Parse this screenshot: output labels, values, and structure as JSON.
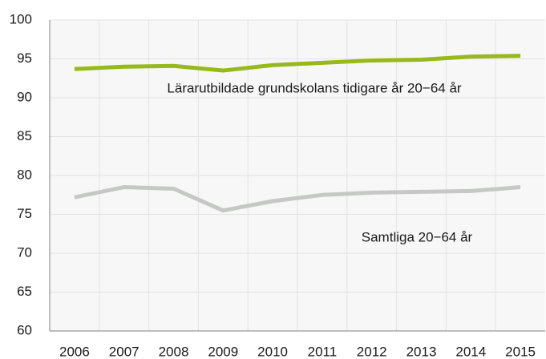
{
  "chart_data": {
    "type": "line",
    "categories": [
      "2006",
      "2007",
      "2008",
      "2009",
      "2010",
      "2011",
      "2012",
      "2013",
      "2014",
      "2015"
    ],
    "series": [
      {
        "name": "Lärarutbildade grundskolans tidigare år 20−64 år",
        "color": "#97b91b",
        "values": [
          93.7,
          94.0,
          94.1,
          93.5,
          94.2,
          94.5,
          94.8,
          94.9,
          95.3,
          95.4
        ]
      },
      {
        "name": "Samtliga 20−64 år",
        "color": "#c6c8c6",
        "values": [
          77.2,
          78.5,
          78.3,
          75.5,
          76.7,
          77.5,
          77.8,
          77.9,
          78.0,
          78.5
        ]
      }
    ],
    "ylim": [
      60,
      100
    ],
    "yticks": [
      60,
      65,
      70,
      75,
      80,
      85,
      90,
      95,
      100
    ],
    "grid": true
  }
}
